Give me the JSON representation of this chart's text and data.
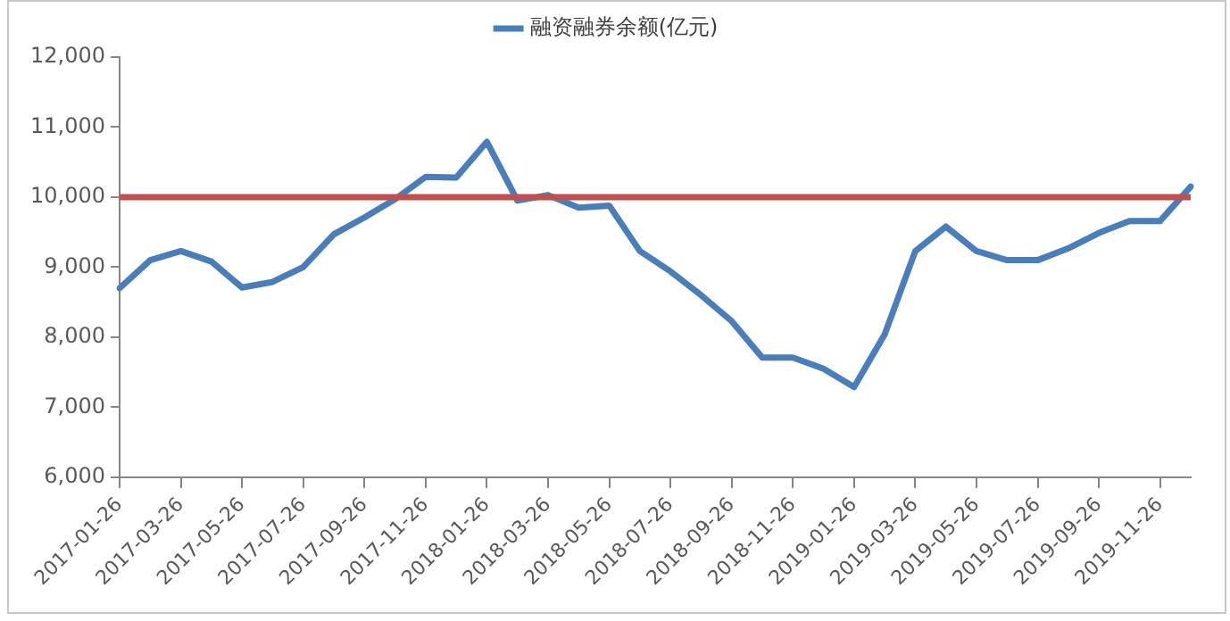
{
  "chart_data": {
    "type": "line",
    "categories": [
      "2017-01-26",
      null,
      "2017-03-26",
      null,
      "2017-05-26",
      null,
      "2017-07-26",
      null,
      "2017-09-26",
      null,
      "2017-11-26",
      null,
      "2018-01-26",
      null,
      "2018-03-26",
      null,
      "2018-05-26",
      null,
      "2018-07-26",
      null,
      "2018-09-26",
      null,
      "2018-11-26",
      null,
      "2019-01-26",
      null,
      "2019-03-26",
      null,
      "2019-05-26",
      null,
      "2019-07-26",
      null,
      "2019-09-26",
      null,
      "2019-11-26",
      null
    ],
    "series": [
      {
        "name": "融资融券余额(亿元)",
        "color": "#4a7ebb",
        "values": [
          8700,
          9100,
          9230,
          9080,
          8710,
          8790,
          9000,
          9470,
          9710,
          9970,
          10290,
          10280,
          10790,
          9950,
          10030,
          9850,
          9880,
          9230,
          8940,
          8600,
          8230,
          7710,
          7710,
          7550,
          7290,
          8040,
          9230,
          9580,
          9230,
          9100,
          9100,
          9270,
          9490,
          9660,
          9660,
          10150
        ]
      }
    ],
    "ylim": [
      6000,
      12000
    ],
    "yticks": [
      {
        "value": 6000,
        "label": "6,000"
      },
      {
        "value": 7000,
        "label": "7,000"
      },
      {
        "value": 8000,
        "label": "8,000"
      },
      {
        "value": 9000,
        "label": "9,000"
      },
      {
        "value": 10000,
        "label": "10,000"
      },
      {
        "value": 11000,
        "label": "11,000"
      },
      {
        "value": 12000,
        "label": "12,000"
      }
    ],
    "ref_lines": [
      {
        "axis": "y",
        "value": 10000,
        "color": "#c0504d"
      }
    ],
    "grid": false,
    "legend": "top",
    "marker": "none",
    "line_style": "solid"
  }
}
